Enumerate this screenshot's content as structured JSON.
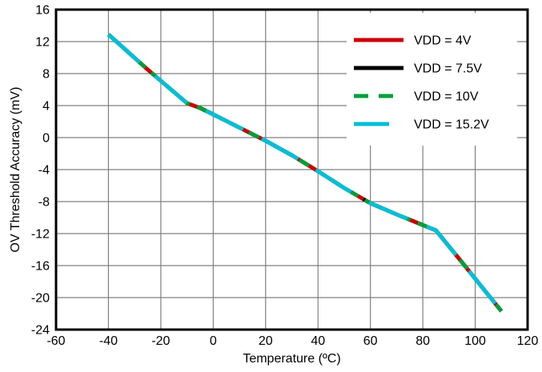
{
  "page": {
    "background": "#ffffff"
  },
  "chart_data": {
    "type": "line",
    "title": "",
    "xlabel": "Temperature (ºC)",
    "ylabel": "OV Threshold Accuracy (mV)",
    "xlim": [
      -60,
      120
    ],
    "ylim": [
      -24,
      16
    ],
    "xticks": [
      -60,
      -40,
      -20,
      0,
      20,
      40,
      60,
      80,
      100,
      120
    ],
    "yticks": [
      16,
      12,
      8,
      4,
      0,
      -4,
      -8,
      -12,
      -16,
      -20,
      -24
    ],
    "grid": true,
    "grid_color": "#808080",
    "axis_color": "#000000",
    "legend_position": "top-right",
    "x": [
      -40,
      -25,
      -10,
      -5,
      0,
      20,
      30,
      40,
      50,
      60,
      70,
      85,
      95,
      110
    ],
    "series": [
      {
        "name": "VDD = 4V",
        "color": "#CC0000",
        "line_style": "solid",
        "values": [
          12.9,
          8.5,
          4.3,
          3.7,
          2.9,
          -0.4,
          -2.2,
          -4.2,
          -6.3,
          -8.2,
          -9.6,
          -11.6,
          -15.6,
          -21.7
        ]
      },
      {
        "name": "VDD = 7.5V",
        "color": "#000000",
        "line_style": "solid",
        "values": [
          12.9,
          8.5,
          4.3,
          3.7,
          2.9,
          -0.4,
          -2.2,
          -4.2,
          -6.3,
          -8.2,
          -9.6,
          -11.6,
          -15.6,
          -21.7
        ]
      },
      {
        "name": "VDD = 10V",
        "color": "#009E3A",
        "line_style": "dashed",
        "values": [
          12.9,
          8.5,
          4.3,
          3.7,
          2.9,
          -0.4,
          -2.2,
          -4.2,
          -6.3,
          -8.2,
          -9.6,
          -11.6,
          -15.6,
          -21.7
        ]
      },
      {
        "name": "VDD = 15.2V",
        "color": "#00BFD6",
        "line_style": "solid",
        "values": [
          12.9,
          8.5,
          4.3,
          3.7,
          2.9,
          -0.4,
          -2.2,
          -4.2,
          -6.3,
          -8.2,
          -9.6,
          -11.6,
          -15.6,
          -21.7
        ]
      }
    ]
  }
}
